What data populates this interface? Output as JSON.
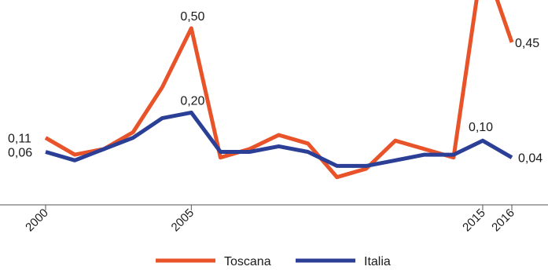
{
  "chart_data": {
    "type": "line",
    "x": [
      2000,
      2001,
      2002,
      2003,
      2004,
      2005,
      2006,
      2007,
      2008,
      2009,
      2010,
      2011,
      2012,
      2013,
      2014,
      2015,
      2016
    ],
    "x_tick_labels": [
      "2000",
      "2005",
      "2015",
      "2016"
    ],
    "x_tick_values": [
      2000,
      2005,
      2015,
      2016
    ],
    "series": [
      {
        "name": "Toscana",
        "color": "#e8532a",
        "values": [
          0.11,
          0.05,
          0.07,
          0.13,
          0.29,
          0.5,
          0.04,
          0.07,
          0.12,
          0.09,
          -0.03,
          0.0,
          0.1,
          0.07,
          0.04,
          0.75,
          0.45
        ]
      },
      {
        "name": "Italia",
        "color": "#2b3f96",
        "values": [
          0.06,
          0.03,
          0.07,
          0.11,
          0.18,
          0.2,
          0.06,
          0.06,
          0.08,
          0.06,
          0.01,
          0.01,
          0.03,
          0.05,
          0.05,
          0.1,
          0.04
        ]
      }
    ],
    "data_labels": [
      {
        "series": 0,
        "index": 0,
        "text": "0,11"
      },
      {
        "series": 0,
        "index": 5,
        "text": "0,50"
      },
      {
        "series": 0,
        "index": 16,
        "text": "0,45"
      },
      {
        "series": 1,
        "index": 0,
        "text": "0,06"
      },
      {
        "series": 1,
        "index": 5,
        "text": "0,20"
      },
      {
        "series": 1,
        "index": 15,
        "text": "0,10"
      },
      {
        "series": 1,
        "index": 16,
        "text": "0,04"
      }
    ],
    "ylim": [
      -0.12,
      0.6
    ],
    "grid": false,
    "legend_position": "bottom"
  }
}
